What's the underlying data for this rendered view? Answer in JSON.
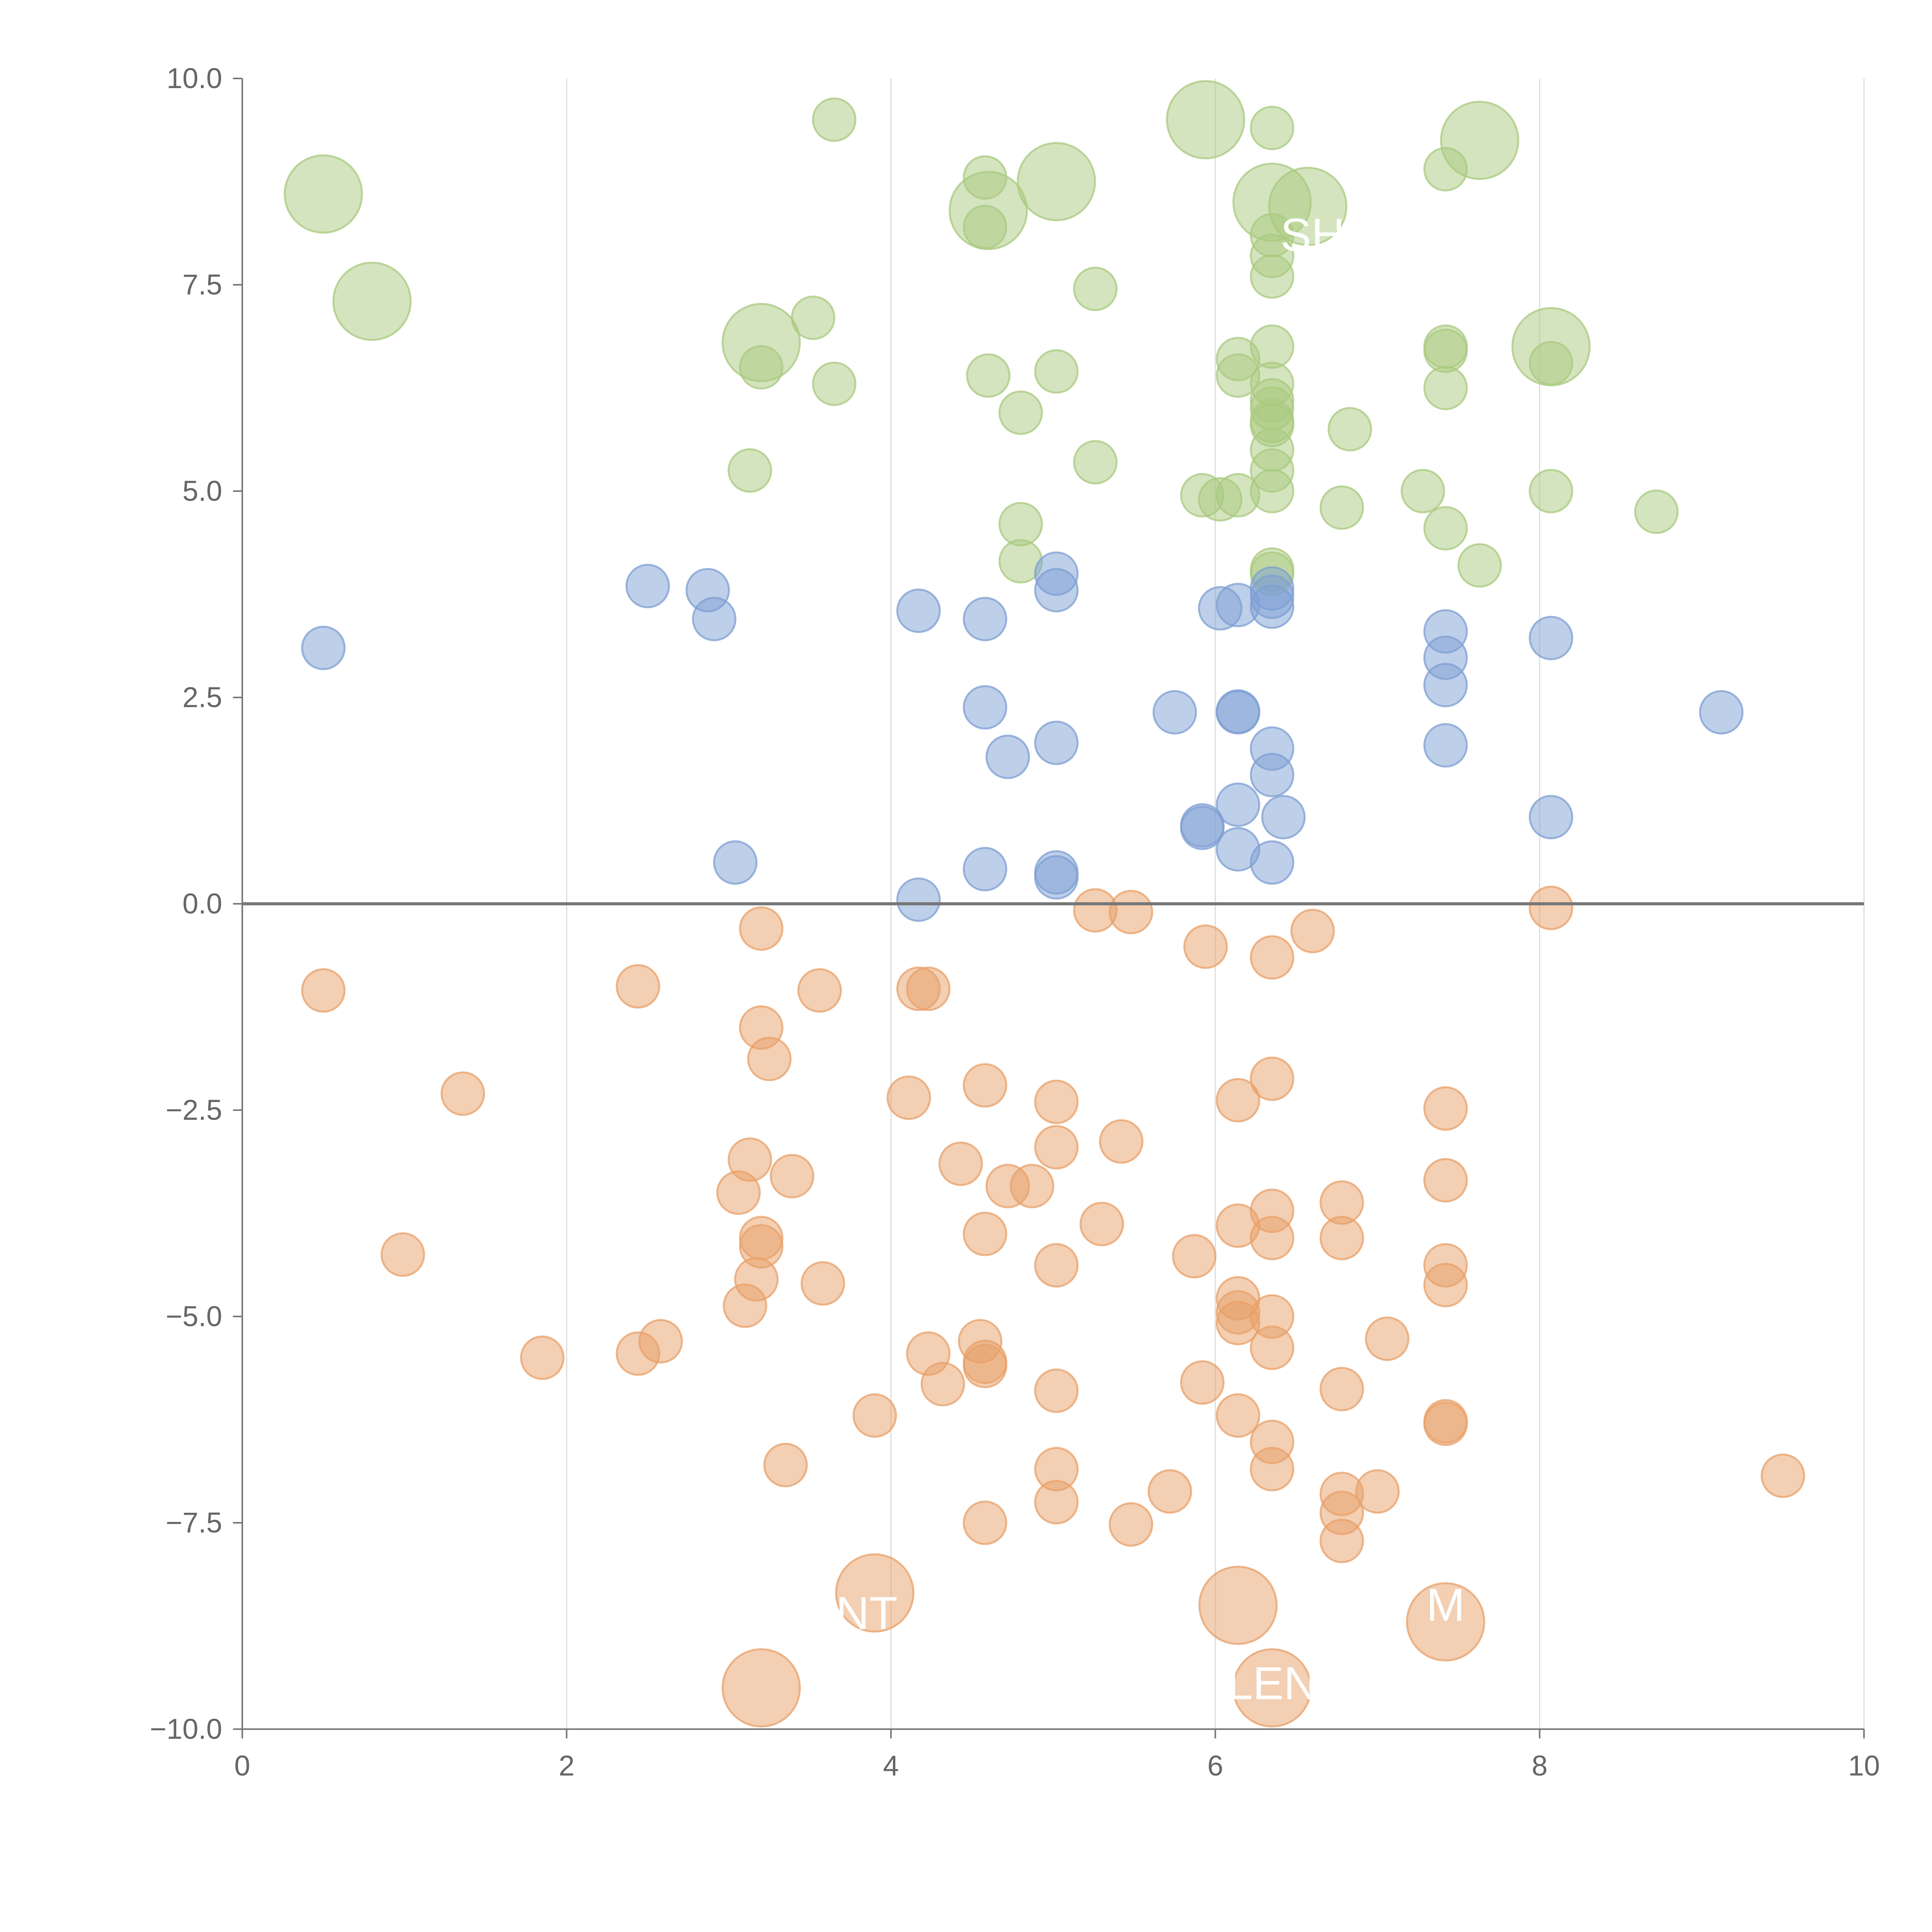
{
  "chart_data": {
    "type": "scatter",
    "subtype": "bubble",
    "title": "",
    "xlabel": "",
    "ylabel": "",
    "xlim": [
      0,
      10
    ],
    "ylim": [
      -10,
      10
    ],
    "x_ticks": [
      0,
      2,
      4,
      6,
      8,
      10
    ],
    "y_ticks": [
      -10,
      -7.5,
      -5,
      -2.5,
      0,
      2.5,
      5,
      7.5,
      10
    ],
    "x_tick_labels": [
      "0",
      "2",
      "4",
      "6",
      "8",
      "10"
    ],
    "y_tick_labels": [
      "−10.0",
      "−7.5",
      "−5.0",
      "−2.5",
      "0.0",
      "2.5",
      "5.0",
      "7.5",
      "10.0"
    ],
    "zero_line": true,
    "vertical_gridlines": true,
    "colors": {
      "green": "#a9c97f",
      "blue": "#7d9fd3",
      "orange": "#e8a068",
      "axis": "#777777",
      "grid": "#dddddd"
    },
    "series": [
      {
        "name": "green",
        "points": [
          {
            "x": 3.65,
            "y": 9.5,
            "s": 1
          },
          {
            "x": 6.35,
            "y": 9.4,
            "s": 1
          },
          {
            "x": 4.58,
            "y": 8.8,
            "s": 1
          },
          {
            "x": 7.42,
            "y": 8.9,
            "s": 1
          },
          {
            "x": 4.58,
            "y": 8.2,
            "s": 1
          },
          {
            "x": 6.35,
            "y": 8.1,
            "s": 1
          },
          {
            "x": 6.35,
            "y": 7.85,
            "s": 1
          },
          {
            "x": 6.35,
            "y": 7.6,
            "s": 1
          },
          {
            "x": 5.26,
            "y": 7.45,
            "s": 1
          },
          {
            "x": 3.52,
            "y": 7.1,
            "s": 1
          },
          {
            "x": 7.42,
            "y": 6.75,
            "s": 1
          },
          {
            "x": 7.42,
            "y": 6.7,
            "s": 1
          },
          {
            "x": 6.35,
            "y": 6.75,
            "s": 1
          },
          {
            "x": 6.14,
            "y": 6.6,
            "s": 1
          },
          {
            "x": 8.07,
            "y": 6.55,
            "s": 1
          },
          {
            "x": 3.2,
            "y": 6.5,
            "s": 1
          },
          {
            "x": 4.6,
            "y": 6.4,
            "s": 1
          },
          {
            "x": 5.02,
            "y": 6.45,
            "s": 1
          },
          {
            "x": 6.14,
            "y": 6.4,
            "s": 1
          },
          {
            "x": 3.65,
            "y": 6.3,
            "s": 1
          },
          {
            "x": 6.35,
            "y": 6.3,
            "s": 1
          },
          {
            "x": 7.42,
            "y": 6.25,
            "s": 1
          },
          {
            "x": 6.35,
            "y": 6.1,
            "s": 1
          },
          {
            "x": 6.35,
            "y": 6.0,
            "s": 1
          },
          {
            "x": 4.8,
            "y": 5.95,
            "s": 1
          },
          {
            "x": 6.35,
            "y": 5.85,
            "s": 1
          },
          {
            "x": 6.35,
            "y": 5.8,
            "s": 1
          },
          {
            "x": 6.83,
            "y": 5.75,
            "s": 1
          },
          {
            "x": 6.35,
            "y": 5.5,
            "s": 1
          },
          {
            "x": 5.26,
            "y": 5.35,
            "s": 1
          },
          {
            "x": 3.13,
            "y": 5.25,
            "s": 1
          },
          {
            "x": 6.35,
            "y": 5.25,
            "s": 1
          },
          {
            "x": 7.28,
            "y": 5.0,
            "s": 1
          },
          {
            "x": 8.07,
            "y": 5.0,
            "s": 1
          },
          {
            "x": 6.35,
            "y": 5.0,
            "s": 1
          },
          {
            "x": 6.14,
            "y": 4.95,
            "s": 1
          },
          {
            "x": 5.92,
            "y": 4.95,
            "s": 1
          },
          {
            "x": 6.03,
            "y": 4.9,
            "s": 1
          },
          {
            "x": 6.78,
            "y": 4.8,
            "s": 1
          },
          {
            "x": 8.72,
            "y": 4.75,
            "s": 1
          },
          {
            "x": 4.8,
            "y": 4.6,
            "s": 1
          },
          {
            "x": 7.42,
            "y": 4.55,
            "s": 1
          },
          {
            "x": 4.8,
            "y": 4.15,
            "s": 1
          },
          {
            "x": 7.63,
            "y": 4.1,
            "s": 1
          },
          {
            "x": 6.35,
            "y": 4.05,
            "s": 1
          },
          {
            "x": 6.35,
            "y": 4.0,
            "s": 1
          },
          {
            "x": 0.5,
            "y": 8.6,
            "s": 2
          },
          {
            "x": 0.8,
            "y": 7.3,
            "s": 2
          },
          {
            "x": 3.2,
            "y": 6.8,
            "s": 2
          },
          {
            "x": 4.6,
            "y": 8.4,
            "s": 2
          },
          {
            "x": 5.02,
            "y": 8.75,
            "s": 2
          },
          {
            "x": 5.94,
            "y": 9.5,
            "s": 2
          },
          {
            "x": 6.35,
            "y": 8.5,
            "s": 2
          },
          {
            "x": 6.57,
            "y": 8.45,
            "s": 2
          },
          {
            "x": 7.63,
            "y": 9.25,
            "s": 2
          },
          {
            "x": 8.07,
            "y": 6.75,
            "s": 2
          }
        ]
      },
      {
        "name": "blue",
        "points": [
          {
            "x": 0.5,
            "y": 3.1,
            "s": 1
          },
          {
            "x": 2.5,
            "y": 3.85,
            "s": 1
          },
          {
            "x": 2.87,
            "y": 3.8,
            "s": 1
          },
          {
            "x": 2.91,
            "y": 3.45,
            "s": 1
          },
          {
            "x": 3.04,
            "y": 0.5,
            "s": 1
          },
          {
            "x": 4.17,
            "y": 3.55,
            "s": 1
          },
          {
            "x": 4.17,
            "y": 0.05,
            "s": 1
          },
          {
            "x": 4.58,
            "y": 3.45,
            "s": 1
          },
          {
            "x": 4.58,
            "y": 2.38,
            "s": 1
          },
          {
            "x": 4.58,
            "y": 0.42,
            "s": 1
          },
          {
            "x": 4.72,
            "y": 1.78,
            "s": 1
          },
          {
            "x": 5.02,
            "y": 4.0,
            "s": 1
          },
          {
            "x": 5.02,
            "y": 3.8,
            "s": 1
          },
          {
            "x": 5.02,
            "y": 1.95,
            "s": 1
          },
          {
            "x": 5.02,
            "y": 0.38,
            "s": 1
          },
          {
            "x": 5.02,
            "y": 0.32,
            "s": 1
          },
          {
            "x": 5.75,
            "y": 2.32,
            "s": 1
          },
          {
            "x": 5.92,
            "y": 0.95,
            "s": 1
          },
          {
            "x": 5.92,
            "y": 0.92,
            "s": 1
          },
          {
            "x": 6.03,
            "y": 3.58,
            "s": 1
          },
          {
            "x": 6.14,
            "y": 3.62,
            "s": 1
          },
          {
            "x": 6.14,
            "y": 2.33,
            "s": 1
          },
          {
            "x": 6.14,
            "y": 2.32,
            "s": 1
          },
          {
            "x": 6.14,
            "y": 1.2,
            "s": 1
          },
          {
            "x": 6.14,
            "y": 0.66,
            "s": 1
          },
          {
            "x": 6.35,
            "y": 3.82,
            "s": 1
          },
          {
            "x": 6.35,
            "y": 3.72,
            "s": 1
          },
          {
            "x": 6.35,
            "y": 3.6,
            "s": 1
          },
          {
            "x": 6.35,
            "y": 1.88,
            "s": 1
          },
          {
            "x": 6.35,
            "y": 1.56,
            "s": 1
          },
          {
            "x": 6.35,
            "y": 0.5,
            "s": 1
          },
          {
            "x": 6.42,
            "y": 1.05,
            "s": 1
          },
          {
            "x": 7.42,
            "y": 3.3,
            "s": 1
          },
          {
            "x": 7.42,
            "y": 2.98,
            "s": 1
          },
          {
            "x": 7.42,
            "y": 2.65,
            "s": 1
          },
          {
            "x": 7.42,
            "y": 1.92,
            "s": 1
          },
          {
            "x": 8.07,
            "y": 3.22,
            "s": 1
          },
          {
            "x": 8.07,
            "y": 1.05,
            "s": 1
          },
          {
            "x": 9.12,
            "y": 2.32,
            "s": 1
          }
        ]
      },
      {
        "name": "orange",
        "points": [
          {
            "x": 0.5,
            "y": -1.05,
            "s": 1
          },
          {
            "x": 2.44,
            "y": -1.0,
            "s": 1
          },
          {
            "x": 1.36,
            "y": -2.3,
            "s": 1
          },
          {
            "x": 0.99,
            "y": -4.25,
            "s": 1
          },
          {
            "x": 1.85,
            "y": -5.5,
            "s": 1
          },
          {
            "x": 2.44,
            "y": -5.45,
            "s": 1
          },
          {
            "x": 2.58,
            "y": -5.3,
            "s": 1
          },
          {
            "x": 3.2,
            "y": -0.3,
            "s": 1
          },
          {
            "x": 3.2,
            "y": -1.5,
            "s": 1
          },
          {
            "x": 3.25,
            "y": -1.88,
            "s": 1
          },
          {
            "x": 3.56,
            "y": -1.05,
            "s": 1
          },
          {
            "x": 3.13,
            "y": -3.1,
            "s": 1
          },
          {
            "x": 3.39,
            "y": -3.3,
            "s": 1
          },
          {
            "x": 3.06,
            "y": -3.5,
            "s": 1
          },
          {
            "x": 3.2,
            "y": -4.05,
            "s": 1
          },
          {
            "x": 3.2,
            "y": -4.15,
            "s": 1
          },
          {
            "x": 3.17,
            "y": -4.55,
            "s": 1
          },
          {
            "x": 3.1,
            "y": -4.87,
            "s": 1
          },
          {
            "x": 3.58,
            "y": -4.6,
            "s": 1
          },
          {
            "x": 3.35,
            "y": -6.8,
            "s": 1
          },
          {
            "x": 3.9,
            "y": -6.2,
            "s": 1
          },
          {
            "x": 4.11,
            "y": -2.35,
            "s": 1
          },
          {
            "x": 4.17,
            "y": -1.03,
            "s": 1
          },
          {
            "x": 4.23,
            "y": -1.03,
            "s": 1
          },
          {
            "x": 4.43,
            "y": -3.15,
            "s": 1
          },
          {
            "x": 4.23,
            "y": -5.45,
            "s": 1
          },
          {
            "x": 4.32,
            "y": -5.82,
            "s": 1
          },
          {
            "x": 4.55,
            "y": -5.3,
            "s": 1
          },
          {
            "x": 4.58,
            "y": -5.6,
            "s": 1
          },
          {
            "x": 4.58,
            "y": -5.55,
            "s": 1
          },
          {
            "x": 4.58,
            "y": -2.2,
            "s": 1
          },
          {
            "x": 4.58,
            "y": -4.0,
            "s": 1
          },
          {
            "x": 4.72,
            "y": -3.42,
            "s": 1
          },
          {
            "x": 4.87,
            "y": -3.42,
            "s": 1
          },
          {
            "x": 4.58,
            "y": -7.5,
            "s": 1
          },
          {
            "x": 5.02,
            "y": -2.4,
            "s": 1
          },
          {
            "x": 5.02,
            "y": -2.95,
            "s": 1
          },
          {
            "x": 5.02,
            "y": -4.38,
            "s": 1
          },
          {
            "x": 5.02,
            "y": -5.9,
            "s": 1
          },
          {
            "x": 5.02,
            "y": -6.85,
            "s": 1
          },
          {
            "x": 5.02,
            "y": -7.25,
            "s": 1
          },
          {
            "x": 5.26,
            "y": -0.08,
            "s": 1
          },
          {
            "x": 5.48,
            "y": -0.1,
            "s": 1
          },
          {
            "x": 5.42,
            "y": -2.88,
            "s": 1
          },
          {
            "x": 5.3,
            "y": -3.88,
            "s": 1
          },
          {
            "x": 5.48,
            "y": -7.52,
            "s": 1
          },
          {
            "x": 5.72,
            "y": -7.12,
            "s": 1
          },
          {
            "x": 5.94,
            "y": -0.52,
            "s": 1
          },
          {
            "x": 5.87,
            "y": -4.27,
            "s": 1
          },
          {
            "x": 5.92,
            "y": -5.8,
            "s": 1
          },
          {
            "x": 6.14,
            "y": -2.38,
            "s": 1
          },
          {
            "x": 6.14,
            "y": -3.9,
            "s": 1
          },
          {
            "x": 6.14,
            "y": -4.78,
            "s": 1
          },
          {
            "x": 6.14,
            "y": -4.95,
            "s": 1
          },
          {
            "x": 6.14,
            "y": -5.08,
            "s": 1
          },
          {
            "x": 6.14,
            "y": -6.2,
            "s": 1
          },
          {
            "x": 6.35,
            "y": -0.65,
            "s": 1
          },
          {
            "x": 6.35,
            "y": -2.12,
            "s": 1
          },
          {
            "x": 6.35,
            "y": -3.72,
            "s": 1
          },
          {
            "x": 6.35,
            "y": -4.05,
            "s": 1
          },
          {
            "x": 6.35,
            "y": -5.0,
            "s": 1
          },
          {
            "x": 6.35,
            "y": -5.38,
            "s": 1
          },
          {
            "x": 6.35,
            "y": -6.52,
            "s": 1
          },
          {
            "x": 6.35,
            "y": -6.85,
            "s": 1
          },
          {
            "x": 6.6,
            "y": -0.33,
            "s": 1
          },
          {
            "x": 6.78,
            "y": -3.62,
            "s": 1
          },
          {
            "x": 6.78,
            "y": -4.05,
            "s": 1
          },
          {
            "x": 6.78,
            "y": -5.88,
            "s": 1
          },
          {
            "x": 6.78,
            "y": -7.15,
            "s": 1
          },
          {
            "x": 6.78,
            "y": -7.38,
            "s": 1
          },
          {
            "x": 6.78,
            "y": -7.72,
            "s": 1
          },
          {
            "x": 7.0,
            "y": -7.12,
            "s": 1
          },
          {
            "x": 7.06,
            "y": -5.27,
            "s": 1
          },
          {
            "x": 7.42,
            "y": -2.48,
            "s": 1
          },
          {
            "x": 7.42,
            "y": -3.35,
            "s": 1
          },
          {
            "x": 7.42,
            "y": -4.38,
            "s": 1
          },
          {
            "x": 7.42,
            "y": -4.62,
            "s": 1
          },
          {
            "x": 7.42,
            "y": -6.27,
            "s": 1
          },
          {
            "x": 7.42,
            "y": -6.3,
            "s": 1
          },
          {
            "x": 8.07,
            "y": -0.05,
            "s": 1
          },
          {
            "x": 9.5,
            "y": -6.93,
            "s": 1
          },
          {
            "x": 3.2,
            "y": -9.5,
            "s": 2
          },
          {
            "x": 3.9,
            "y": -8.35,
            "s": 2
          },
          {
            "x": 6.14,
            "y": -8.5,
            "s": 2
          },
          {
            "x": 6.35,
            "y": -9.5,
            "s": 2
          },
          {
            "x": 7.42,
            "y": -8.7,
            "s": 2
          }
        ]
      }
    ],
    "annotations": [
      {
        "text": "SH",
        "x": 6.6,
        "y": 8.1
      },
      {
        "text": "NT",
        "x": 3.85,
        "y": -8.6
      },
      {
        "text": "LEN",
        "x": 6.35,
        "y": -9.45
      },
      {
        "text": "M",
        "x": 7.42,
        "y": -8.5
      }
    ]
  }
}
